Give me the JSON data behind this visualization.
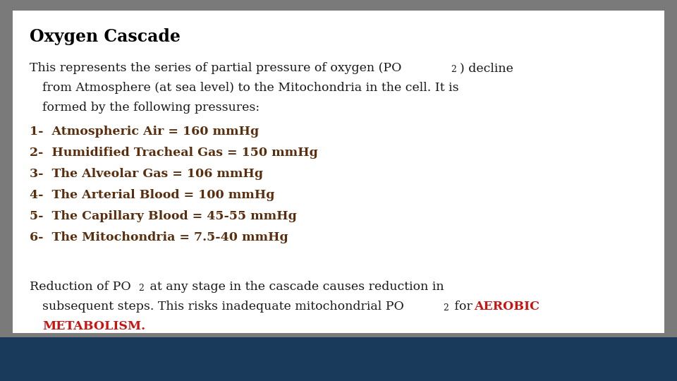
{
  "title": "Oxygen Cascade",
  "title_color": "#000000",
  "title_fontsize": 17,
  "background_slide_top": "#7a7a7a",
  "background_slide_bottom": "#1a3a5c",
  "background_card": "#ffffff",
  "text_color_main": "#5a2d0c",
  "text_color_black": "#1a1a1a",
  "text_color_red": "#cc1111",
  "list_items": [
    "1-  Atmospheric Air = 160 mmHg",
    "2-  Humidified Tracheal Gas = 150 mmHg",
    "3-  The Alveolar Gas = 106 mmHg",
    "4-  The Arterial Blood = 100 mmHg",
    "5-  The Capillary Blood = 45-55 mmHg",
    "6-  The Mitochondria = 7.5-40 mmHg"
  ],
  "font_family": "DejaVu Serif",
  "font_size_body": 12.5,
  "font_size_sub": 9
}
